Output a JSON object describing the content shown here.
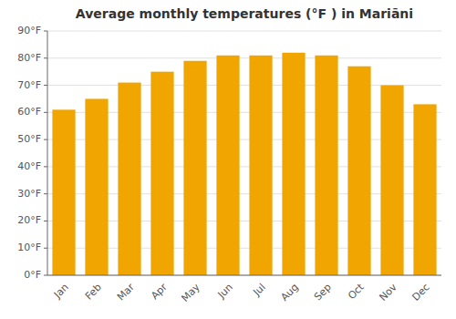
{
  "chart_data": {
    "type": "bar",
    "title": "Average monthly temperatures (°F ) in Mariāni",
    "categories": [
      "Jan",
      "Feb",
      "Mar",
      "Apr",
      "May",
      "Jun",
      "Jul",
      "Aug",
      "Sep",
      "Oct",
      "Nov",
      "Dec"
    ],
    "values": [
      61,
      65,
      71,
      75,
      79,
      81,
      81,
      82,
      81,
      77,
      70,
      63
    ],
    "color": "#F0A500",
    "ylim": [
      0,
      90
    ],
    "yticks": [
      {
        "value": 0,
        "label": "0°F"
      },
      {
        "value": 10,
        "label": "10°F"
      },
      {
        "value": 20,
        "label": "20°F"
      },
      {
        "value": 30,
        "label": "30°F"
      },
      {
        "value": 40,
        "label": "40°F"
      },
      {
        "value": 50,
        "label": "50°F"
      },
      {
        "value": 60,
        "label": "60°F"
      },
      {
        "value": 70,
        "label": "70°F"
      },
      {
        "value": 80,
        "label": "80°F"
      },
      {
        "value": 90,
        "label": "90°F"
      }
    ],
    "grid": true
  }
}
